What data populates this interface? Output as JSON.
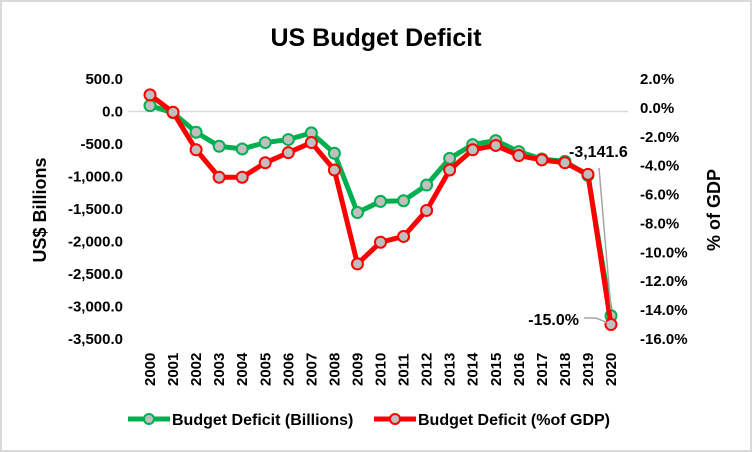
{
  "chart_data": {
    "type": "line",
    "title": "US Budget Deficit",
    "x": [
      "2000",
      "2001",
      "2002",
      "2003",
      "2004",
      "2005",
      "2006",
      "2007",
      "2008",
      "2009",
      "2010",
      "2011",
      "2012",
      "2013",
      "2014",
      "2015",
      "2016",
      "2017",
      "2018",
      "2019",
      "2020"
    ],
    "ylabel_left": "US$ Billions",
    "ylabel_right": "% of GDP",
    "ylim_left": [
      -3500,
      500
    ],
    "ylim_right": [
      -16,
      2
    ],
    "yticks_left": [
      "500.0",
      "0.0",
      "-500.0",
      "-1,000.0",
      "-1,500.0",
      "-2,000.0",
      "-2,500.0",
      "-3,000.0",
      "-3,500.0"
    ],
    "yticks_right": [
      "2.0%",
      "0.0%",
      "-2.0%",
      "-4.0%",
      "-6.0%",
      "-8.0%",
      "-10.0%",
      "-12.0%",
      "-14.0%",
      "-16.0%"
    ],
    "series": [
      {
        "name": "Budget Deficit (Billions)",
        "axis": "left",
        "color": "#00b050",
        "marker_fill": "#bfbfbf",
        "values": [
          90,
          -20,
          -319,
          -535,
          -576,
          -478,
          -432,
          -329,
          -643,
          -1554,
          -1383,
          -1373,
          -1131,
          -721,
          -509,
          -448,
          -617,
          -730,
          -767,
          -984,
          -3141.6
        ]
      },
      {
        "name": "Budget Deficit (%of GDP)",
        "axis": "right",
        "color": "#ff0000",
        "marker_fill": "#bfbfbf",
        "values": [
          0.9,
          -0.3,
          -2.9,
          -4.8,
          -4.8,
          -3.8,
          -3.1,
          -2.4,
          -4.3,
          -10.8,
          -9.3,
          -8.9,
          -7.1,
          -4.3,
          -2.9,
          -2.6,
          -3.3,
          -3.6,
          -3.8,
          -4.6,
          -15.0
        ]
      }
    ],
    "annotations": [
      {
        "series": 0,
        "index": 20,
        "text": "-3,141.6"
      },
      {
        "series": 1,
        "index": 20,
        "text": "-15.0%"
      }
    ],
    "grid": "zero-line only",
    "legend": "bottom"
  }
}
